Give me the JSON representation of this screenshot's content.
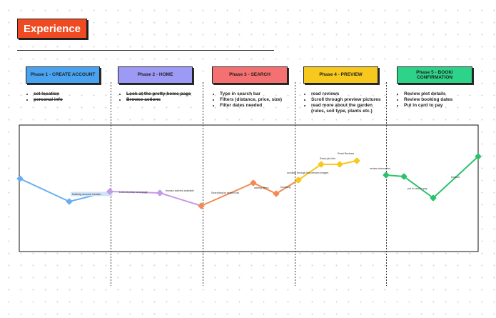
{
  "board": {
    "title": "Experience"
  },
  "phases": [
    {
      "label": "Phase 1 - CREATE ACCOUNT",
      "color": "#4aa3f0",
      "notes": [
        "set location",
        "personal info"
      ],
      "notes_struck": true
    },
    {
      "label": "Phase 2 - HOME",
      "color": "#9d9af5",
      "notes": [
        "Look at the pretty home page",
        "Browse actions"
      ],
      "notes_struck": true
    },
    {
      "label": "Phase 3 - SEARCH",
      "color": "#f57070",
      "notes": [
        "Type  in search bar",
        "Filters (distance, price, size)",
        "Filter dates needed"
      ],
      "notes_struck": false
    },
    {
      "label": "Phase 4 - PREVIEW",
      "color": "#f7c81e",
      "notes": [
        "read reviews",
        "Scroll through preview pictures",
        "read more about the garden (rules, soil type, plants etc.)"
      ],
      "notes_struck": false
    },
    {
      "label": "Phase 5 - BOOK/ CONFIRMATION",
      "color": "#2ed38a",
      "notes": [
        "Review plot details",
        "Review booking dates",
        "Put in card to pay"
      ],
      "notes_struck": false
    }
  ],
  "journey": {
    "segments": [
      {
        "phase": 1,
        "color": "#6aaef0",
        "points": [
          {
            "label": ""
          },
          {
            "label": "finishing account creation"
          },
          {
            "label": ""
          }
        ]
      },
      {
        "phase": 2,
        "color": "#c79ae8",
        "points": [
          {
            "label": "Look at pretty homepage"
          },
          {
            "label": "browse activies available"
          },
          {
            "label": ""
          }
        ]
      },
      {
        "phase": 3,
        "color": "#f28a52",
        "points": [
          {
            "label": "Searching by search bar"
          },
          {
            "label": "adding filters"
          },
          {
            "label": "browsing"
          },
          {
            "label": ""
          }
        ]
      },
      {
        "phase": 4,
        "color": "#f7c81e",
        "points": [
          {
            "label": "scrolling through the preview images"
          },
          {
            "label": "Read plot info"
          },
          {
            "label": "Read Reviews"
          },
          {
            "label": ""
          }
        ]
      },
      {
        "phase": 5,
        "color": "#2cc26a",
        "points": [
          {
            "label": "review information"
          },
          {
            "label": "put in card to pay"
          },
          {
            "label": "booked"
          },
          {
            "label": ""
          }
        ]
      }
    ]
  }
}
